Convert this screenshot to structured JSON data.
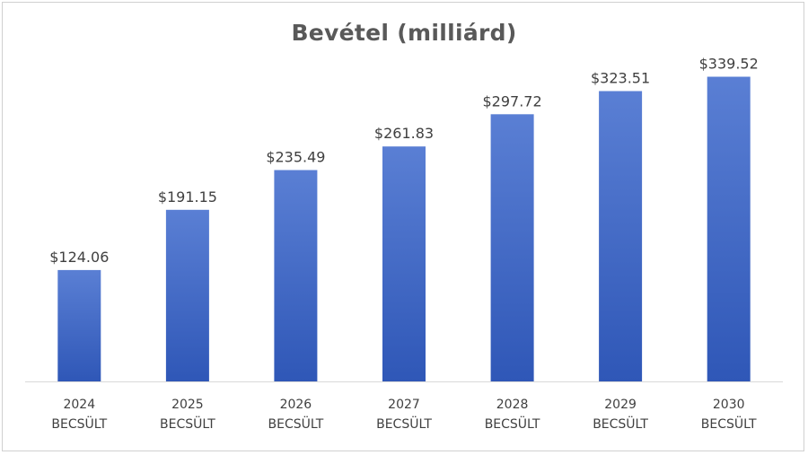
{
  "chart_data": {
    "type": "bar",
    "title": "Bevétel (milliárd)",
    "categories": [
      [
        "2024",
        "BECSÜLT"
      ],
      [
        "2025",
        "BECSÜLT"
      ],
      [
        "2026",
        "BECSÜLT"
      ],
      [
        "2027",
        "BECSÜLT"
      ],
      [
        "2028",
        "BECSÜLT"
      ],
      [
        "2029",
        "BECSÜLT"
      ],
      [
        "2030",
        "BECSÜLT"
      ]
    ],
    "values": [
      124.06,
      191.15,
      235.49,
      261.83,
      297.72,
      323.51,
      339.52
    ],
    "data_labels": [
      "$124.06",
      "$191.15",
      "$235.49",
      "$261.83",
      "$297.72",
      "$323.51",
      "$339.52"
    ],
    "ylim": [
      0,
      380
    ],
    "grid": false,
    "legend": "none",
    "colors": {
      "bar_top": "#5a7fd4",
      "bar_bottom": "#2f57b7",
      "axis": "#d9d9d9"
    }
  }
}
